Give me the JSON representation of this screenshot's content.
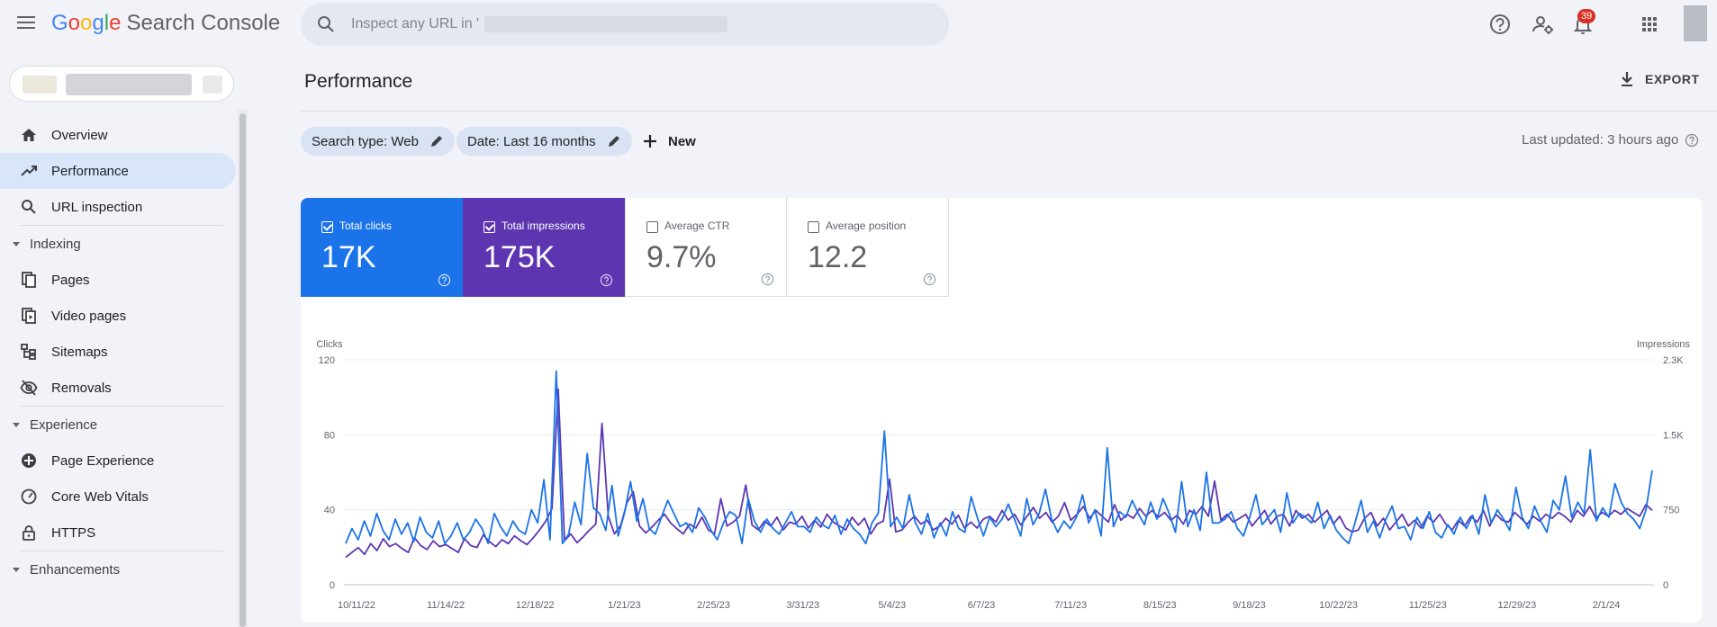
{
  "app": {
    "title": "Search Console"
  },
  "search": {
    "placeholder": "Inspect any URL in '"
  },
  "header": {
    "notifications_count": "39"
  },
  "sidebar": {
    "items": [
      {
        "label": "Overview",
        "icon": "home-icon",
        "active": false
      },
      {
        "label": "Performance",
        "icon": "trending-icon",
        "active": true
      },
      {
        "label": "URL inspection",
        "icon": "search-icon",
        "active": false
      }
    ],
    "sections": [
      {
        "label": "Indexing",
        "items": [
          {
            "label": "Pages",
            "icon": "pages-icon"
          },
          {
            "label": "Video pages",
            "icon": "video-pages-icon"
          },
          {
            "label": "Sitemaps",
            "icon": "sitemaps-icon"
          },
          {
            "label": "Removals",
            "icon": "removals-icon"
          }
        ]
      },
      {
        "label": "Experience",
        "items": [
          {
            "label": "Page Experience",
            "icon": "page-experience-icon"
          },
          {
            "label": "Core Web Vitals",
            "icon": "gauge-icon"
          },
          {
            "label": "HTTPS",
            "icon": "lock-icon"
          }
        ]
      },
      {
        "label": "Enhancements",
        "items": []
      }
    ]
  },
  "main": {
    "title": "Performance",
    "export_label": "EXPORT",
    "filters": [
      {
        "label": "Search type: Web"
      },
      {
        "label": "Date: Last 16 months"
      }
    ],
    "new_label": "New",
    "last_updated": "Last updated: 3 hours ago"
  },
  "metrics": [
    {
      "label": "Total clicks",
      "value": "17K",
      "checked": true,
      "color": "#1a73e8"
    },
    {
      "label": "Total impressions",
      "value": "175K",
      "checked": true,
      "color": "#5e35b1"
    },
    {
      "label": "Average CTR",
      "value": "9.7%",
      "checked": false
    },
    {
      "label": "Average position",
      "value": "12.2",
      "checked": false
    }
  ],
  "chart_data": {
    "type": "line",
    "left_axis_label": "Clicks",
    "right_axis_label": "Impressions",
    "left_ticks": [
      "120",
      "80",
      "40",
      "0"
    ],
    "right_ticks": [
      "2.3K",
      "1.5K",
      "750",
      "0"
    ],
    "x_tick_labels": [
      "10/11/22",
      "11/14/22",
      "12/18/22",
      "1/21/23",
      "2/25/23",
      "3/31/23",
      "5/4/23",
      "6/7/23",
      "7/11/23",
      "8/15/23",
      "9/18/23",
      "10/22/23",
      "11/25/23",
      "12/29/23",
      "2/1/24"
    ],
    "ylim_left": [
      0,
      120
    ],
    "ylim_right": [
      0,
      2300
    ],
    "series": [
      {
        "name": "Clicks",
        "axis": "left",
        "color": "#1a73e8",
        "values": [
          22,
          30,
          24,
          34,
          26,
          38,
          29,
          24,
          35,
          27,
          33,
          23,
          36,
          28,
          25,
          34,
          22,
          26,
          33,
          24,
          28,
          35,
          30,
          22,
          38,
          31,
          26,
          34,
          29,
          27,
          40,
          33,
          56,
          24,
          114,
          22,
          27,
          44,
          32,
          70,
          41,
          38,
          29,
          53,
          26,
          38,
          55,
          34,
          46,
          30,
          27,
          36,
          45,
          38,
          31,
          33,
          28,
          41,
          36,
          29,
          24,
          33,
          39,
          37,
          22,
          46,
          34,
          28,
          35,
          30,
          27,
          33,
          39,
          31,
          31,
          28,
          36,
          32,
          30,
          37,
          27,
          35,
          30,
          27,
          22,
          33,
          38,
          82,
          31,
          36,
          30,
          48,
          33,
          27,
          38,
          25,
          33,
          26,
          39,
          30,
          28,
          47,
          36,
          26,
          36,
          31,
          35,
          43,
          35,
          26,
          46,
          32,
          38,
          51,
          35,
          28,
          34,
          30,
          36,
          48,
          33,
          40,
          26,
          73,
          31,
          39,
          36,
          45,
          38,
          32,
          44,
          35,
          46,
          38,
          28,
          55,
          31,
          40,
          29,
          60,
          33,
          33,
          35,
          39,
          30,
          26,
          36,
          48,
          32,
          36,
          40,
          28,
          49,
          33,
          38,
          36,
          33,
          44,
          30,
          37,
          29,
          25,
          22,
          33,
          45,
          28,
          34,
          25,
          35,
          42,
          30,
          31,
          24,
          36,
          30,
          39,
          28,
          25,
          32,
          27,
          36,
          30,
          37,
          27,
          48,
          33,
          40,
          35,
          29,
          52,
          36,
          30,
          42,
          34,
          28,
          45,
          40,
          58,
          36,
          44,
          38,
          72,
          34,
          41,
          36,
          54,
          44,
          38,
          35,
          30,
          40,
          61
        ]
      },
      {
        "name": "Impressions",
        "axis": "right",
        "color": "#5e35b1",
        "values": [
          280,
          330,
          380,
          310,
          420,
          350,
          470,
          390,
          420,
          370,
          330,
          480,
          400,
          360,
          450,
          390,
          410,
          370,
          330,
          470,
          400,
          380,
          510,
          440,
          390,
          460,
          420,
          500,
          450,
          410,
          480,
          560,
          650,
          780,
          2000,
          450,
          520,
          430,
          490,
          560,
          620,
          1650,
          700,
          520,
          610,
          840,
          950,
          600,
          530,
          590,
          660,
          720,
          630,
          570,
          520,
          620,
          580,
          690,
          560,
          520,
          880,
          600,
          640,
          700,
          1020,
          610,
          560,
          650,
          600,
          690,
          560,
          640,
          620,
          700,
          580,
          660,
          590,
          720,
          640,
          600,
          560,
          690,
          610,
          680,
          520,
          620,
          650,
          1080,
          540,
          560,
          640,
          700,
          620,
          660,
          560,
          600,
          680,
          620,
          710,
          580,
          640,
          580,
          670,
          700,
          640,
          760,
          660,
          720,
          610,
          700,
          790,
          680,
          740,
          640,
          700,
          840,
          660,
          720,
          800,
          680,
          760,
          700,
          640,
          820,
          660,
          720,
          680,
          780,
          700,
          760,
          690,
          740,
          660,
          710,
          620,
          760,
          720,
          800,
          700,
          1060,
          660,
          720,
          640,
          680,
          720,
          600,
          680,
          760,
          620,
          700,
          720,
          600,
          760,
          680,
          720,
          640,
          700,
          760,
          620,
          700,
          580,
          540,
          560,
          680,
          740,
          600,
          680,
          560,
          640,
          720,
          600,
          660,
          580,
          700,
          640,
          720,
          620,
          560,
          660,
          600,
          700,
          640,
          760,
          600,
          720,
          660,
          640,
          740,
          680,
          620,
          700,
          650,
          720,
          680,
          740,
          700,
          640,
          760,
          700,
          800,
          680,
          740,
          700,
          760,
          720,
          780,
          740,
          700,
          820,
          760
        ]
      }
    ],
    "grid": true
  }
}
